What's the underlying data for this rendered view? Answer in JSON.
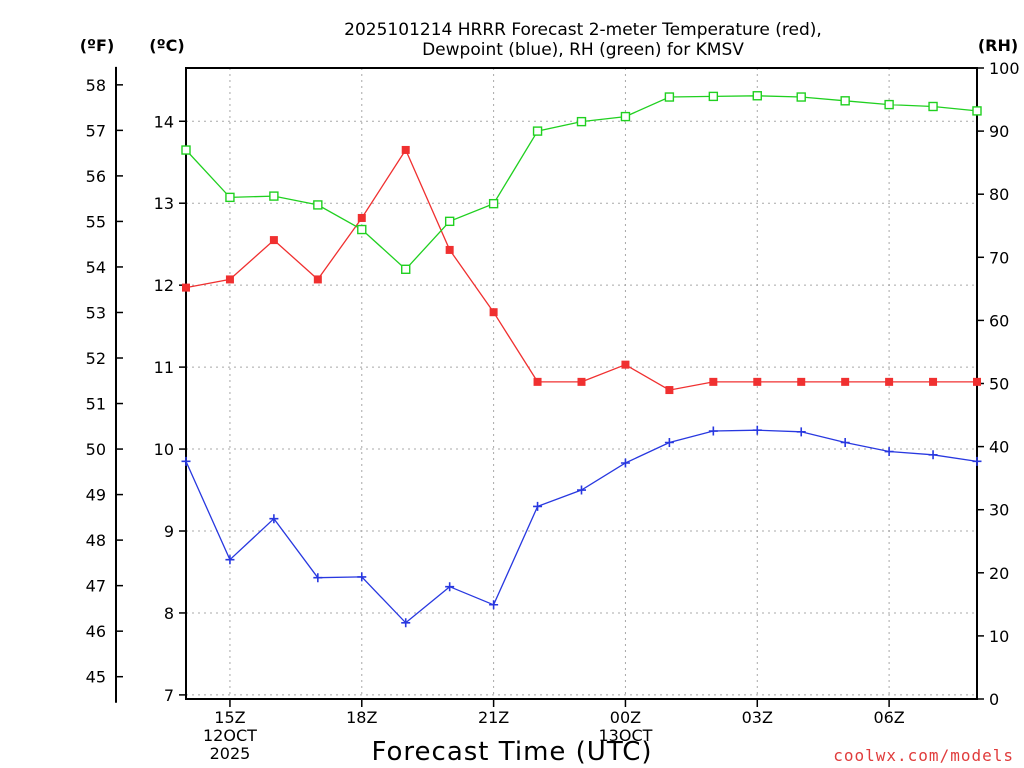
{
  "title": {
    "line1": "2025101214 HRRR Forecast 2-meter Temperature (red),",
    "line2": "Dewpoint (blue), RH (green) for KMSV"
  },
  "units": {
    "fahrenheit": "(ºF)",
    "celsius": "(ºC)",
    "rh": "(RH)"
  },
  "xaxis_label": "Forecast Time (UTC)",
  "credit": "coolwx.com/models",
  "colors": {
    "temp": "#f03030",
    "dewpoint": "#2838e0",
    "rh": "#20d020",
    "grid": "#a8a8a8",
    "credit": "#e03c3c"
  },
  "chart_data": {
    "type": "line",
    "title": "2025101214 HRRR Forecast 2-meter Temperature (red), Dewpoint (blue), RH (green) for KMSV",
    "xlabel": "Forecast Time (UTC)",
    "x_hours": [
      14,
      15,
      16,
      17,
      18,
      19,
      20,
      21,
      22,
      23,
      24,
      25,
      26,
      27,
      28,
      29,
      30,
      31,
      32
    ],
    "xlim": [
      14,
      32
    ],
    "xticks": [
      {
        "h": 15,
        "lines": [
          "15Z",
          "12OCT",
          "2025"
        ]
      },
      {
        "h": 18,
        "lines": [
          "18Z"
        ]
      },
      {
        "h": 21,
        "lines": [
          "21Z"
        ]
      },
      {
        "h": 24,
        "lines": [
          "00Z",
          "13OCT"
        ]
      },
      {
        "h": 27,
        "lines": [
          "03Z"
        ]
      },
      {
        "h": 30,
        "lines": [
          "06Z"
        ]
      }
    ],
    "celsius_axis": {
      "range": [
        6.95,
        14.65
      ],
      "ticks": [
        "7",
        "8",
        "9",
        "10",
        "11",
        "12",
        "13",
        "14"
      ]
    },
    "fahrenheit_axis": {
      "ticks": [
        "45",
        "46",
        "47",
        "48",
        "49",
        "50",
        "51",
        "52",
        "53",
        "54",
        "55",
        "56",
        "57",
        "58"
      ]
    },
    "rh_axis": {
      "range": [
        0,
        100
      ],
      "ticks": [
        "0",
        "10",
        "20",
        "30",
        "40",
        "50",
        "60",
        "70",
        "80",
        "90",
        "100"
      ]
    },
    "series": [
      {
        "name": "2-meter Temperature",
        "color": "red",
        "axis": "celsius",
        "marker": "filled-square",
        "values": [
          11.97,
          12.07,
          12.55,
          12.07,
          12.82,
          13.65,
          12.43,
          11.67,
          10.82,
          10.82,
          11.03,
          10.72,
          10.82,
          10.82,
          10.82,
          10.82,
          10.82,
          10.82,
          10.82
        ]
      },
      {
        "name": "Dewpoint",
        "color": "blue",
        "axis": "celsius",
        "marker": "plus",
        "values": [
          9.85,
          8.65,
          9.15,
          8.43,
          8.44,
          7.88,
          8.32,
          8.1,
          9.3,
          9.5,
          9.83,
          10.08,
          10.22,
          10.23,
          10.21,
          10.08,
          9.97,
          9.93,
          9.85
        ]
      },
      {
        "name": "RH",
        "color": "green",
        "axis": "rh",
        "marker": "open-square",
        "values": [
          87,
          79.5,
          79.7,
          78.3,
          74.4,
          68.1,
          75.7,
          78.5,
          90,
          91.5,
          92.3,
          95.4,
          95.5,
          95.6,
          95.4,
          94.8,
          94.2,
          93.9,
          93.2
        ]
      }
    ]
  }
}
